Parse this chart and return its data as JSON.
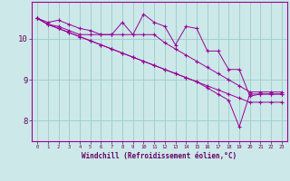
{
  "xlabel": "Windchill (Refroidissement éolien,°C)",
  "background_color": "#cce8e8",
  "line_color": "#990099",
  "grid_color": "#99cccc",
  "xlim": [
    -0.5,
    23.5
  ],
  "ylim": [
    7.5,
    10.9
  ],
  "yticks": [
    8,
    9,
    10
  ],
  "xticks": [
    0,
    1,
    2,
    3,
    4,
    5,
    6,
    7,
    8,
    9,
    10,
    11,
    12,
    13,
    14,
    15,
    16,
    17,
    18,
    19,
    20,
    21,
    22,
    23
  ],
  "series": [
    [
      10.5,
      10.4,
      10.45,
      10.35,
      10.25,
      10.2,
      10.1,
      10.1,
      10.4,
      10.1,
      10.6,
      10.4,
      10.3,
      9.85,
      10.3,
      10.25,
      9.7,
      9.7,
      9.25,
      9.25,
      8.6,
      8.65,
      8.65,
      8.65
    ],
    [
      10.5,
      10.35,
      10.3,
      10.2,
      10.1,
      10.1,
      10.1,
      10.1,
      10.1,
      10.1,
      10.1,
      10.1,
      9.9,
      9.75,
      9.6,
      9.45,
      9.3,
      9.15,
      9.0,
      8.85,
      8.7,
      8.7,
      8.7,
      8.7
    ],
    [
      10.5,
      10.35,
      10.25,
      10.15,
      10.05,
      9.95,
      9.85,
      9.75,
      9.65,
      9.55,
      9.45,
      9.35,
      9.25,
      9.15,
      9.05,
      8.95,
      8.85,
      8.75,
      8.65,
      8.55,
      8.45,
      8.45,
      8.45,
      8.45
    ],
    [
      10.5,
      10.35,
      10.25,
      10.15,
      10.05,
      9.95,
      9.85,
      9.75,
      9.65,
      9.55,
      9.45,
      9.35,
      9.25,
      9.15,
      9.05,
      8.95,
      8.8,
      8.65,
      8.5,
      7.85,
      8.65,
      8.65,
      8.65,
      8.65
    ]
  ]
}
